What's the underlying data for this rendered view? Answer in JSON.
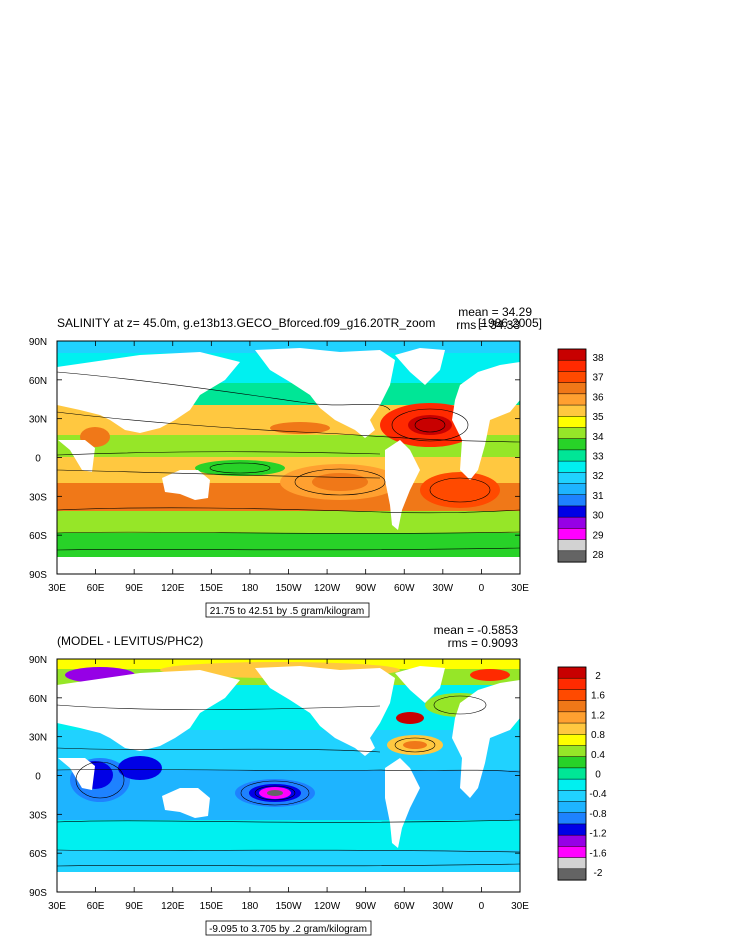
{
  "chart_data": [
    {
      "type": "heatmap",
      "title": "SALINITY at z=  45.0m, g.e13b13.GECO_Bforced.f09_g16.20TR_zoom",
      "title_suffix": "[1986-2005]",
      "stats": {
        "mean": "mean = 34.29",
        "rms": "rms = 34.33"
      },
      "x_ticks": [
        "30E",
        "60E",
        "90E",
        "120E",
        "150E",
        "180",
        "150W",
        "120W",
        "90W",
        "60W",
        "30W",
        "0",
        "30E"
      ],
      "y_ticks": [
        "90N",
        "60N",
        "30N",
        "0",
        "30S",
        "60S",
        "90S"
      ],
      "colorbar": {
        "labels": [
          "38",
          "37",
          "36",
          "35",
          "34",
          "33",
          "32",
          "31",
          "30",
          "29",
          "28"
        ],
        "colors": [
          "#c80000",
          "#ff2a00",
          "#ff4a00",
          "#f07818",
          "#ffa030",
          "#ffc840",
          "#ffff00",
          "#96e628",
          "#28d228",
          "#00e696",
          "#00f0f0",
          "#20d2ff",
          "#1eb4ff",
          "#1e82ff",
          "#0000e6",
          "#9600e6",
          "#ff00ff",
          "#d2d2d2",
          "#646464"
        ]
      },
      "info_box": "21.75 to 42.51 by .5 gram/kilogram"
    },
    {
      "type": "heatmap",
      "title": "(MODEL - LEVITUS/PHC2)",
      "title_suffix": "",
      "stats": {
        "mean": "mean = -0.5853",
        "rms": "rms = 0.9093"
      },
      "x_ticks": [
        "30E",
        "60E",
        "90E",
        "120E",
        "150E",
        "180",
        "150W",
        "120W",
        "90W",
        "60W",
        "30W",
        "0",
        "30E"
      ],
      "y_ticks": [
        "90N",
        "60N",
        "30N",
        "0",
        "30S",
        "60S",
        "90S"
      ],
      "colorbar": {
        "labels": [
          "2",
          "1.6",
          "1.2",
          "0.8",
          "0.4",
          "0",
          "-0.4",
          "-0.8",
          "-1.2",
          "-1.6",
          "-2"
        ],
        "colors": [
          "#c80000",
          "#ff2a00",
          "#ff4a00",
          "#f07818",
          "#ffa030",
          "#ffc840",
          "#ffff00",
          "#96e628",
          "#28d228",
          "#00e696",
          "#00f0f0",
          "#20d2ff",
          "#1eb4ff",
          "#1e82ff",
          "#0000e6",
          "#9600e6",
          "#ff00ff",
          "#d2d2d2",
          "#646464"
        ]
      },
      "info_box": "-9.095 to 3.705 by .2 gram/kilogram"
    }
  ]
}
